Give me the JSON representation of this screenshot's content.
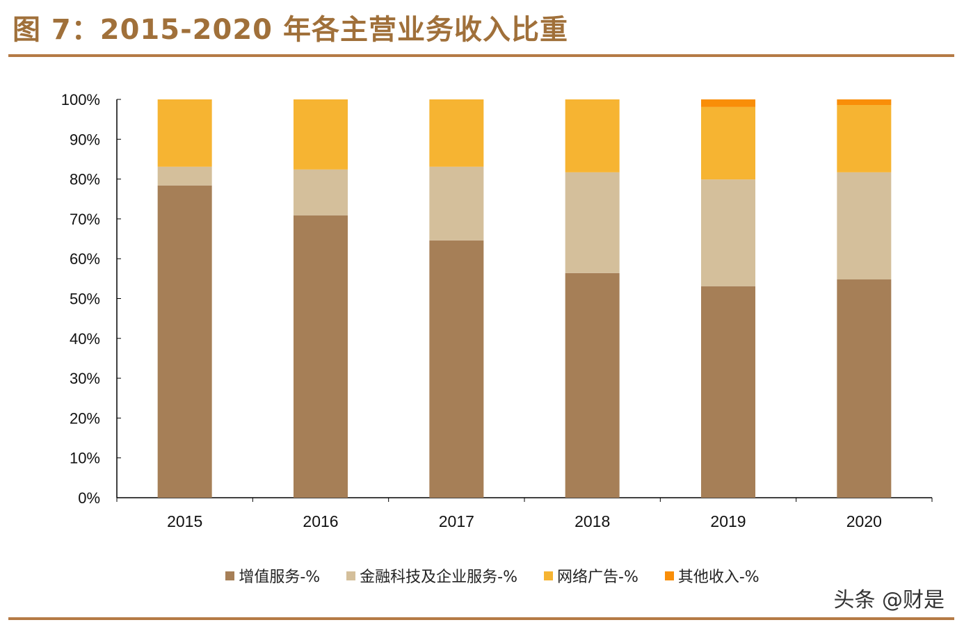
{
  "title": "图 7：2015-2020 年各主营业务收入比重",
  "watermark": "头条 @财是",
  "chart_data": {
    "type": "bar",
    "stacked": true,
    "categories": [
      "2015",
      "2016",
      "2017",
      "2018",
      "2019",
      "2020"
    ],
    "ylim": [
      0,
      100
    ],
    "yticks": [
      "0%",
      "10%",
      "20%",
      "30%",
      "40%",
      "50%",
      "60%",
      "70%",
      "80%",
      "90%",
      "100%"
    ],
    "grid": false,
    "legend": "bottom",
    "series": [
      {
        "name": "增值服务-%",
        "color": "#a67f57",
        "values": [
          78.4,
          70.9,
          64.6,
          56.4,
          53.1,
          54.8
        ]
      },
      {
        "name": "金融科技及企业服务-%",
        "color": "#d4bf9b",
        "values": [
          4.7,
          11.5,
          18.5,
          25.3,
          26.8,
          26.9
        ]
      },
      {
        "name": "网络广告-%",
        "color": "#f6b432",
        "values": [
          16.9,
          17.6,
          16.9,
          18.3,
          18.2,
          16.9
        ]
      },
      {
        "name": "其他收入-%",
        "color": "#f98e08",
        "values": [
          0,
          0,
          0,
          0,
          1.9,
          1.4
        ]
      }
    ]
  }
}
